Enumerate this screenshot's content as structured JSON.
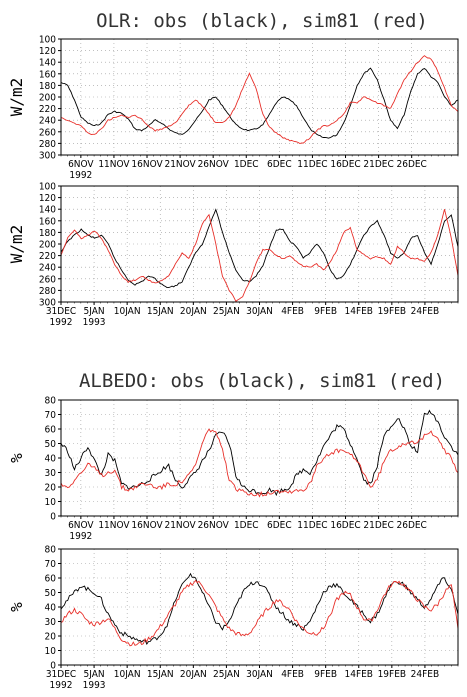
{
  "titles": {
    "olr": "OLR: obs (black), sim81 (red)",
    "albedo": "ALBEDO: obs (black), sim81 (red)"
  },
  "colors": {
    "obs": "#000000",
    "sim": "#e8302a",
    "grid": "#9a9a9a",
    "axis": "#000000"
  },
  "chart_data": [
    {
      "type": "line",
      "title": "OLR: obs (black), sim81 (red)",
      "ylabel": "W/m2",
      "ylim": [
        300,
        100
      ],
      "yticks": [
        "100",
        "120",
        "140",
        "160",
        "180",
        "200",
        "220",
        "240",
        "260",
        "280",
        "300"
      ],
      "xtick_labels": [
        "6NOV",
        "11NOV",
        "16NOV",
        "21NOV",
        "26NOV",
        "1DEC",
        "6DEC",
        "11DEC",
        "16DEC",
        "21DEC",
        "26DEC"
      ],
      "x_year_label": "1992",
      "x_days": 60,
      "grid": true,
      "series": [
        {
          "name": "obs",
          "color": "#000000",
          "values": [
            175,
            180,
            205,
            235,
            245,
            250,
            245,
            230,
            225,
            228,
            238,
            255,
            258,
            250,
            240,
            245,
            255,
            262,
            265,
            255,
            240,
            225,
            205,
            200,
            215,
            232,
            248,
            255,
            258,
            255,
            248,
            230,
            210,
            200,
            205,
            215,
            235,
            255,
            265,
            270,
            270,
            265,
            245,
            215,
            180,
            160,
            150,
            170,
            205,
            240,
            255,
            230,
            190,
            160,
            150,
            165,
            175,
            200,
            215,
            205
          ]
        },
        {
          "name": "sim81",
          "color": "#e8302a",
          "values": [
            235,
            240,
            245,
            250,
            262,
            265,
            255,
            240,
            235,
            232,
            235,
            232,
            238,
            250,
            258,
            255,
            250,
            245,
            230,
            215,
            205,
            215,
            230,
            245,
            245,
            235,
            215,
            185,
            160,
            185,
            230,
            252,
            262,
            270,
            275,
            278,
            280,
            270,
            258,
            250,
            248,
            240,
            230,
            210,
            210,
            200,
            205,
            210,
            215,
            220,
            195,
            170,
            155,
            140,
            130,
            135,
            155,
            185,
            215,
            225
          ]
        }
      ]
    },
    {
      "type": "line",
      "title": "",
      "ylabel": "W/m2",
      "ylim": [
        300,
        100
      ],
      "yticks": [
        "100",
        "120",
        "140",
        "160",
        "180",
        "200",
        "220",
        "240",
        "260",
        "280",
        "300"
      ],
      "xtick_labels": [
        "31DEC",
        "5JAN",
        "10JAN",
        "15JAN",
        "20JAN",
        "25JAN",
        "30JAN",
        "4FEB",
        "9FEB",
        "14FEB",
        "19FEB",
        "24FEB"
      ],
      "x_year_labels": [
        "1992",
        "1993"
      ],
      "x_days": 60,
      "grid": true,
      "series": [
        {
          "name": "obs",
          "color": "#000000",
          "values": [
            215,
            195,
            185,
            175,
            185,
            190,
            185,
            200,
            225,
            245,
            262,
            270,
            265,
            255,
            260,
            270,
            275,
            272,
            265,
            240,
            215,
            200,
            170,
            140,
            180,
            215,
            245,
            262,
            265,
            255,
            238,
            205,
            175,
            175,
            195,
            205,
            225,
            215,
            200,
            215,
            245,
            260,
            255,
            235,
            210,
            185,
            170,
            160,
            185,
            215,
            225,
            215,
            190,
            185,
            215,
            235,
            200,
            160,
            150,
            205
          ]
        },
        {
          "name": "sim81",
          "color": "#e8302a",
          "values": [
            220,
            190,
            175,
            190,
            185,
            178,
            190,
            210,
            235,
            255,
            265,
            262,
            255,
            262,
            268,
            262,
            255,
            235,
            215,
            225,
            200,
            165,
            150,
            200,
            255,
            280,
            298,
            290,
            265,
            232,
            210,
            210,
            220,
            225,
            220,
            230,
            238,
            240,
            235,
            245,
            232,
            210,
            180,
            172,
            210,
            218,
            225,
            222,
            225,
            235,
            205,
            215,
            225,
            225,
            230,
            215,
            185,
            140,
            190,
            255
          ]
        }
      ]
    },
    {
      "type": "line",
      "title": "ALBEDO: obs (black), sim81 (red)",
      "ylabel": "%",
      "ylim": [
        0,
        80
      ],
      "yticks": [
        "0",
        "10",
        "20",
        "30",
        "40",
        "50",
        "60",
        "70",
        "80"
      ],
      "xtick_labels": [
        "6NOV",
        "11NOV",
        "16NOV",
        "21NOV",
        "26NOV",
        "1DEC",
        "6DEC",
        "11DEC",
        "16DEC",
        "21DEC",
        "26DEC"
      ],
      "x_year_label": "1992",
      "x_days": 60,
      "grid": true,
      "series": [
        {
          "name": "obs",
          "color": "#000000",
          "values": [
            50,
            45,
            32,
            40,
            48,
            38,
            28,
            42,
            38,
            22,
            20,
            20,
            22,
            25,
            28,
            32,
            35,
            25,
            20,
            25,
            30,
            38,
            45,
            55,
            58,
            50,
            28,
            20,
            18,
            17,
            16,
            18,
            16,
            18,
            20,
            28,
            32,
            30,
            38,
            48,
            55,
            62,
            60,
            50,
            40,
            25,
            22,
            35,
            55,
            62,
            68,
            60,
            48,
            45,
            70,
            72,
            65,
            55,
            48,
            42
          ]
        },
        {
          "name": "sim81",
          "color": "#e8302a",
          "values": [
            22,
            20,
            25,
            30,
            35,
            33,
            28,
            30,
            32,
            20,
            18,
            20,
            22,
            22,
            20,
            20,
            22,
            22,
            24,
            28,
            35,
            50,
            60,
            58,
            45,
            25,
            18,
            17,
            16,
            15,
            15,
            16,
            18,
            17,
            17,
            18,
            18,
            22,
            35,
            40,
            42,
            45,
            45,
            42,
            38,
            30,
            20,
            25,
            38,
            45,
            48,
            50,
            52,
            50,
            55,
            58,
            55,
            45,
            40,
            30
          ]
        }
      ]
    },
    {
      "type": "line",
      "title": "",
      "ylabel": "%",
      "ylim": [
        0,
        80
      ],
      "yticks": [
        "0",
        "10",
        "20",
        "30",
        "40",
        "50",
        "60",
        "70",
        "80"
      ],
      "xtick_labels": [
        "31DEC",
        "5JAN",
        "10JAN",
        "15JAN",
        "20JAN",
        "25JAN",
        "30JAN",
        "4FEB",
        "9FEB",
        "14FEB",
        "19FEB",
        "24FEB"
      ],
      "x_year_labels": [
        "1992",
        "1993"
      ],
      "x_days": 60,
      "grid": true,
      "series": [
        {
          "name": "obs",
          "color": "#000000",
          "values": [
            40,
            45,
            50,
            55,
            52,
            50,
            45,
            35,
            28,
            22,
            20,
            18,
            16,
            16,
            18,
            22,
            30,
            45,
            55,
            62,
            60,
            50,
            40,
            30,
            25,
            30,
            40,
            50,
            55,
            58,
            55,
            48,
            40,
            35,
            30,
            28,
            25,
            30,
            40,
            50,
            55,
            55,
            50,
            45,
            40,
            35,
            30,
            35,
            45,
            55,
            58,
            55,
            50,
            45,
            40,
            45,
            55,
            60,
            52,
            35
          ]
        },
        {
          "name": "sim81",
          "color": "#e8302a",
          "values": [
            30,
            35,
            38,
            35,
            30,
            28,
            30,
            32,
            25,
            18,
            15,
            14,
            15,
            18,
            22,
            28,
            35,
            42,
            50,
            55,
            58,
            55,
            48,
            40,
            32,
            25,
            22,
            20,
            22,
            28,
            35,
            40,
            45,
            42,
            38,
            30,
            25,
            22,
            22,
            25,
            35,
            45,
            50,
            48,
            40,
            32,
            30,
            38,
            48,
            55,
            58,
            55,
            50,
            45,
            40,
            38,
            42,
            50,
            55,
            25
          ]
        }
      ]
    }
  ]
}
